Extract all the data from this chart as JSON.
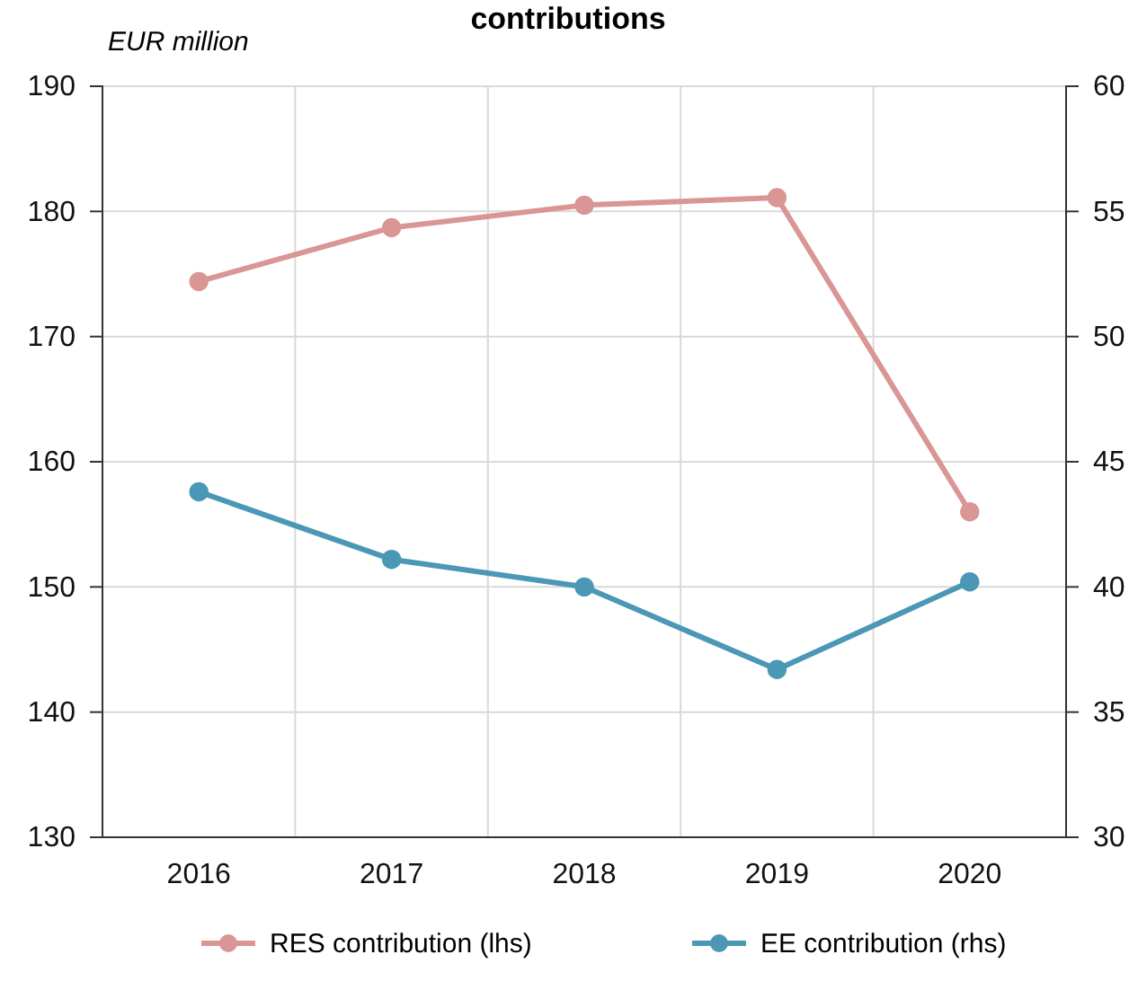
{
  "chart_data": {
    "type": "line",
    "title": "contributions",
    "ylabel": "EUR million",
    "categories": [
      "2016",
      "2017",
      "2018",
      "2019",
      "2020"
    ],
    "series": [
      {
        "name": "RES contribution (lhs)",
        "color": "#d99694",
        "values": [
          174.4,
          178.7,
          180.5,
          181.1,
          156.0
        ]
      },
      {
        "name": "EE contribution (rhs)",
        "color": "#4a98b6",
        "axis": "y2",
        "values": [
          43.8,
          41.1,
          40.0,
          36.7,
          40.2
        ]
      }
    ],
    "ylim": [
      130,
      190
    ],
    "yticks": [
      130,
      140,
      150,
      160,
      170,
      180,
      190
    ],
    "y2lim": [
      30,
      60
    ],
    "y2ticks": [
      30,
      35,
      40,
      45,
      50,
      55,
      60
    ],
    "grid": true,
    "legend": "bottom",
    "marker": "circle",
    "line_style": "solid"
  }
}
